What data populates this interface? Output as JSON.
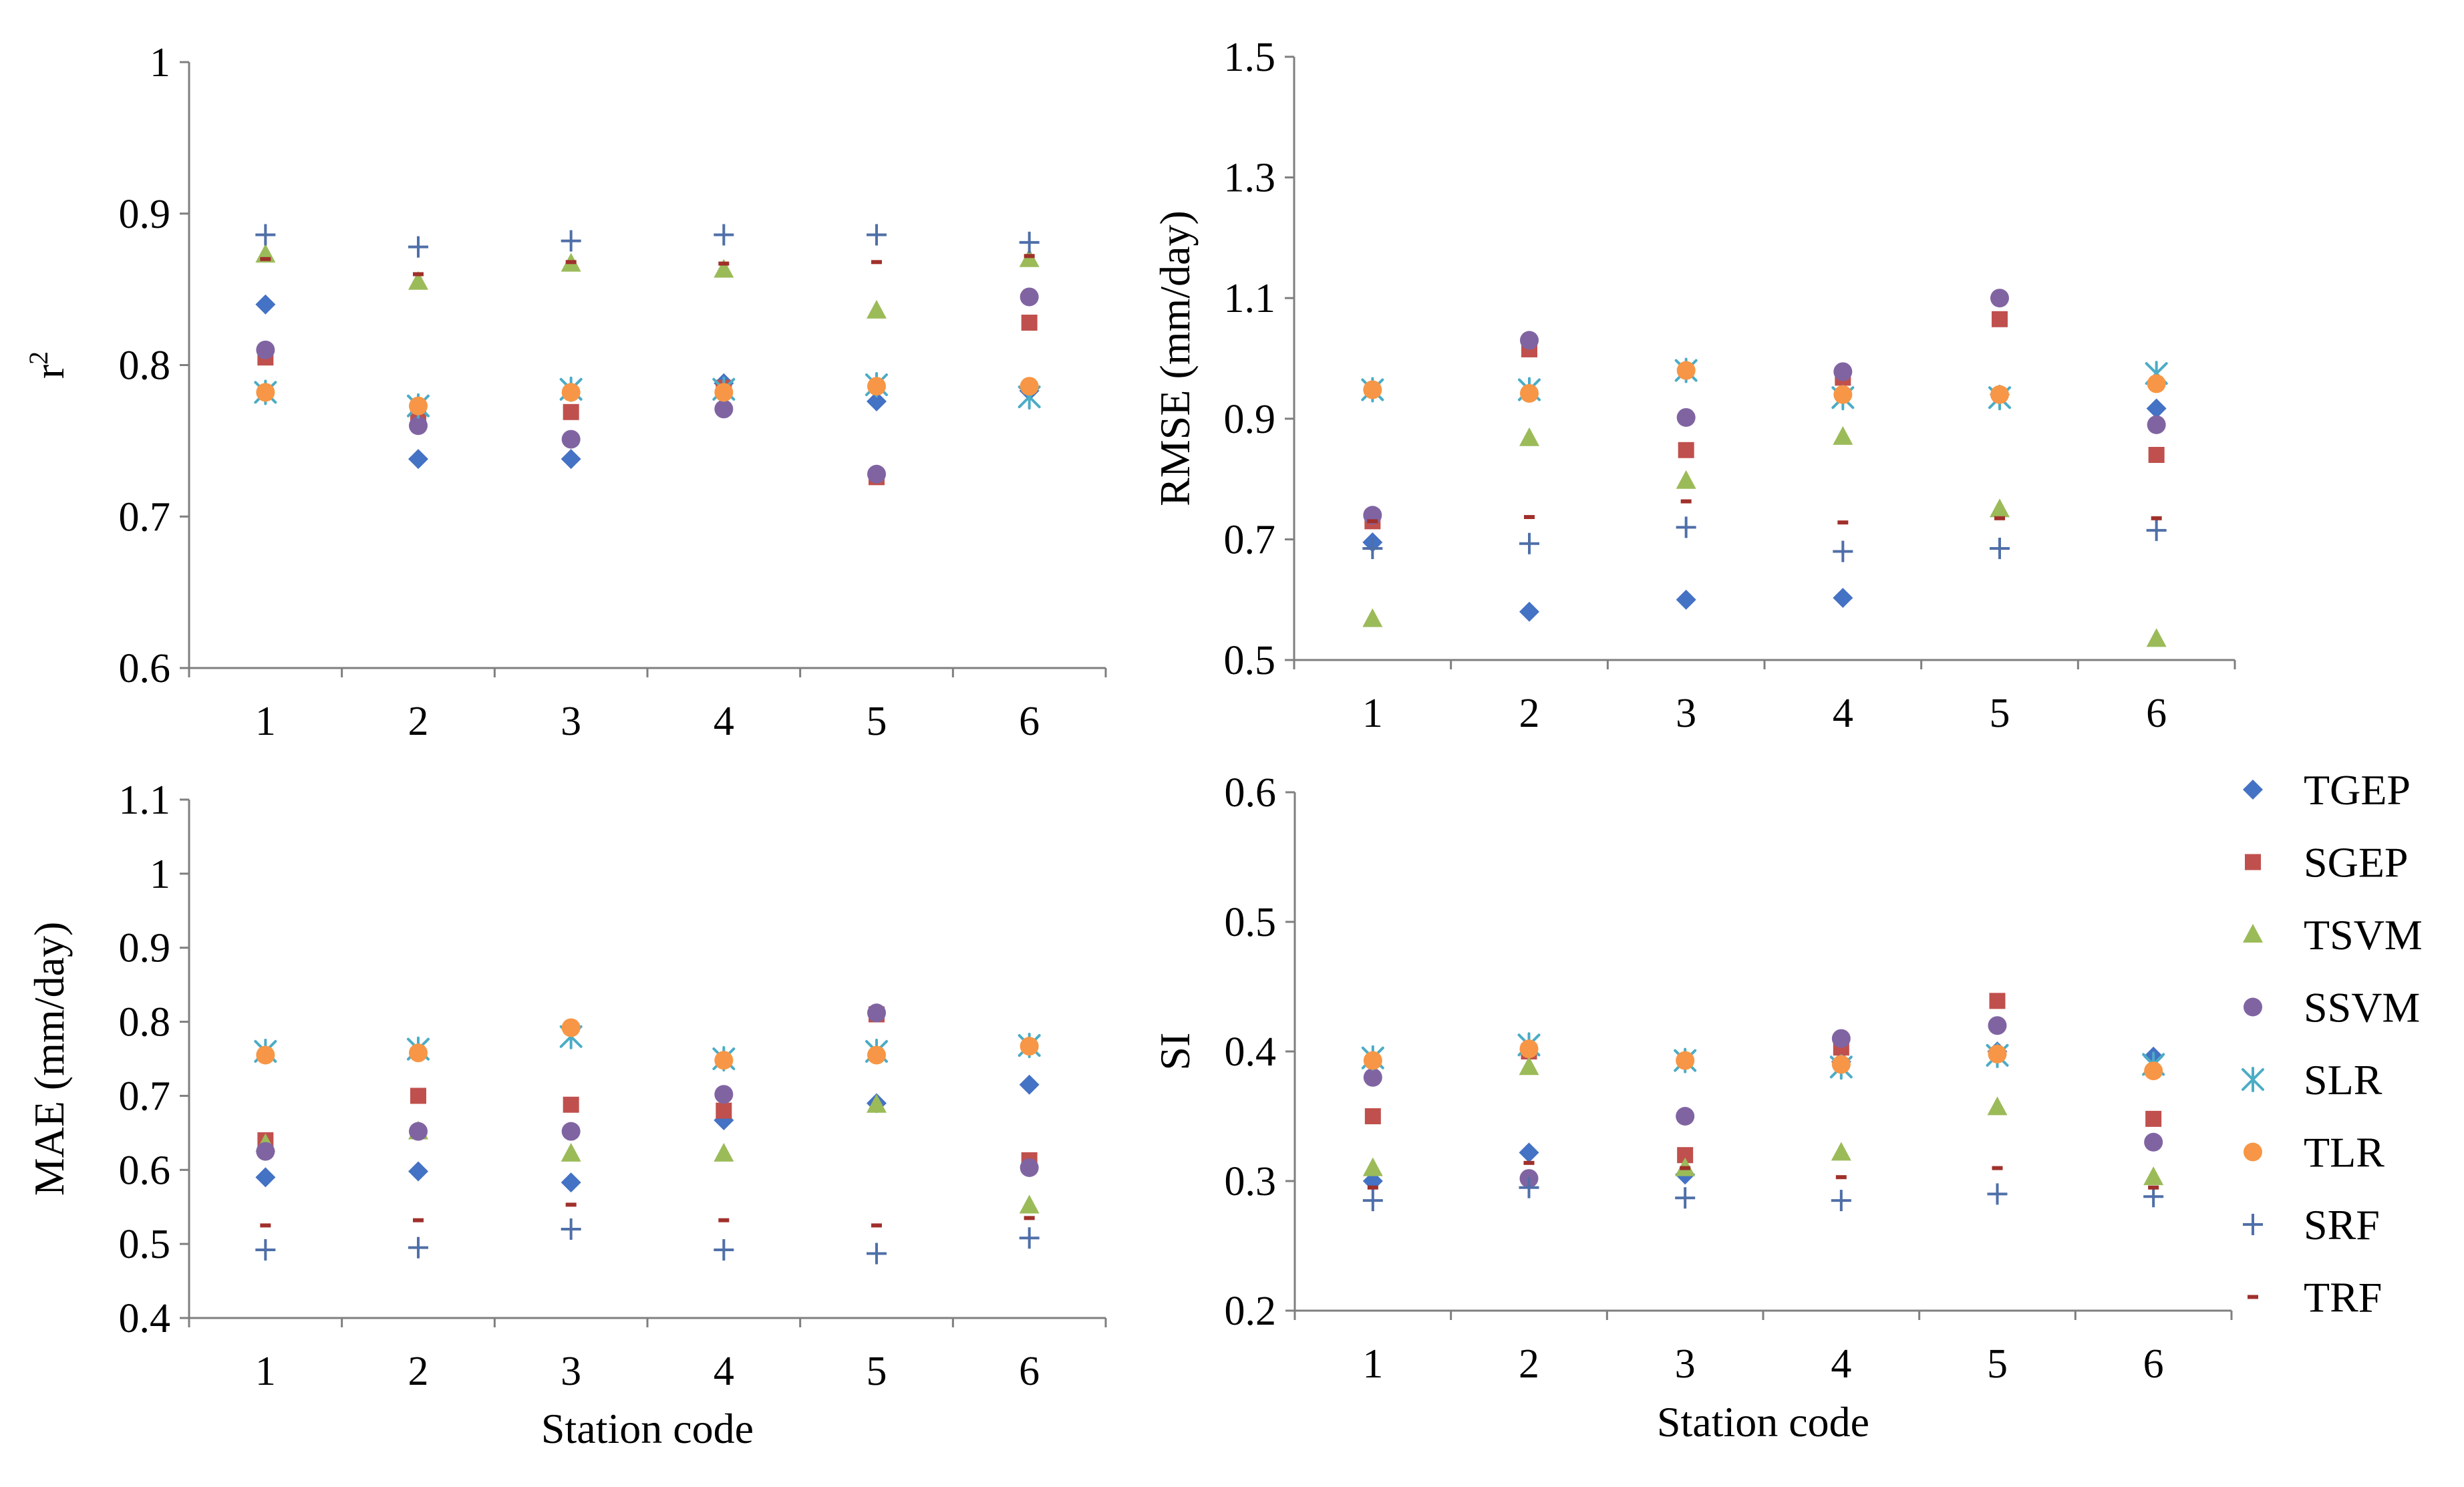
{
  "figure": {
    "legend": {
      "position": "right",
      "entries": [
        "TGEP",
        "SGEP",
        "TSVM",
        "SSVM",
        "SLR",
        "TLR",
        "SRF",
        "TRF"
      ]
    },
    "series_styles": [
      {
        "name": "TGEP",
        "marker": "diamond",
        "color": "#4472C4"
      },
      {
        "name": "SGEP",
        "marker": "square",
        "color": "#C0504D"
      },
      {
        "name": "TSVM",
        "marker": "triangle",
        "color": "#9BBB59"
      },
      {
        "name": "SSVM",
        "marker": "circle",
        "color": "#8064A2"
      },
      {
        "name": "SLR",
        "marker": "asterisk",
        "color": "#4BACC6"
      },
      {
        "name": "TLR",
        "marker": "circle",
        "color": "#F79646"
      },
      {
        "name": "SRF",
        "marker": "plus",
        "color": "#4F6FA8"
      },
      {
        "name": "TRF",
        "marker": "dash",
        "color": "#A0302B"
      }
    ]
  },
  "chart_data": [
    {
      "type": "scatter",
      "title": "",
      "xlabel": "",
      "ylabel": "r²",
      "ylim": [
        0.6,
        1.0
      ],
      "yticks": [
        "0.6",
        "0.7",
        "0.8",
        "0.9",
        "1"
      ],
      "categories": [
        "1",
        "2",
        "3",
        "4",
        "5",
        "6"
      ],
      "grid": false,
      "series": [
        {
          "name": "TGEP",
          "values": [
            0.84,
            0.738,
            0.738,
            0.788,
            0.776,
            0.783
          ]
        },
        {
          "name": "SGEP",
          "values": [
            0.805,
            0.768,
            0.769,
            0.785,
            0.726,
            0.828
          ]
        },
        {
          "name": "TSVM",
          "values": [
            0.873,
            0.855,
            0.867,
            0.863,
            0.836,
            0.87
          ]
        },
        {
          "name": "SSVM",
          "values": [
            0.81,
            0.76,
            0.751,
            0.771,
            0.728,
            0.845
          ]
        },
        {
          "name": "SLR",
          "values": [
            0.782,
            0.773,
            0.784,
            0.784,
            0.787,
            0.779
          ]
        },
        {
          "name": "TLR",
          "values": [
            0.782,
            0.773,
            0.782,
            0.782,
            0.786,
            0.786
          ]
        },
        {
          "name": "SRF",
          "values": [
            0.886,
            0.878,
            0.882,
            0.886,
            0.886,
            0.881
          ]
        },
        {
          "name": "TRF",
          "values": [
            0.87,
            0.86,
            0.868,
            0.867,
            0.868,
            0.872
          ]
        }
      ]
    },
    {
      "type": "scatter",
      "title": "",
      "xlabel": "",
      "ylabel": "RMSE  (mm/day)",
      "ylim": [
        0.5,
        1.5
      ],
      "yticks": [
        "0.5",
        "0.7",
        "0.9",
        "1.1",
        "1.3",
        "1.5"
      ],
      "categories": [
        "1",
        "2",
        "3",
        "4",
        "5",
        "6"
      ],
      "grid": false,
      "series": [
        {
          "name": "TGEP",
          "values": [
            0.695,
            0.58,
            0.6,
            0.603,
            0.94,
            0.917
          ]
        },
        {
          "name": "SGEP",
          "values": [
            0.73,
            1.015,
            0.848,
            0.968,
            1.065,
            0.84
          ]
        },
        {
          "name": "TSVM",
          "values": [
            0.568,
            0.868,
            0.797,
            0.87,
            0.75,
            0.535
          ]
        },
        {
          "name": "SSVM",
          "values": [
            0.74,
            1.03,
            0.902,
            0.978,
            1.1,
            0.89
          ]
        },
        {
          "name": "SLR",
          "values": [
            0.948,
            0.948,
            0.98,
            0.935,
            0.935,
            0.975
          ]
        },
        {
          "name": "TLR",
          "values": [
            0.948,
            0.942,
            0.98,
            0.94,
            0.94,
            0.958
          ]
        },
        {
          "name": "SRF",
          "values": [
            0.685,
            0.693,
            0.72,
            0.68,
            0.685,
            0.715
          ]
        },
        {
          "name": "TRF",
          "values": [
            0.73,
            0.737,
            0.763,
            0.728,
            0.735,
            0.735
          ]
        }
      ]
    },
    {
      "type": "scatter",
      "title": "",
      "xlabel": "Station code",
      "ylabel": "MAE  (mm/day)",
      "ylim": [
        0.4,
        1.1
      ],
      "yticks": [
        "0.4",
        "0.5",
        "0.6",
        "0.7",
        "0.8",
        "0.9",
        "1",
        "1.1"
      ],
      "categories": [
        "1",
        "2",
        "3",
        "4",
        "5",
        "6"
      ],
      "grid": false,
      "series": [
        {
          "name": "TGEP",
          "values": [
            0.59,
            0.598,
            0.583,
            0.667,
            0.69,
            0.715
          ]
        },
        {
          "name": "SGEP",
          "values": [
            0.64,
            0.7,
            0.688,
            0.68,
            0.81,
            0.613
          ]
        },
        {
          "name": "TSVM",
          "values": [
            0.635,
            0.652,
            0.622,
            0.622,
            0.688,
            0.552
          ]
        },
        {
          "name": "SSVM",
          "values": [
            0.625,
            0.652,
            0.652,
            0.702,
            0.812,
            0.603
          ]
        },
        {
          "name": "SLR",
          "values": [
            0.76,
            0.763,
            0.78,
            0.75,
            0.76,
            0.768
          ]
        },
        {
          "name": "TLR",
          "values": [
            0.755,
            0.758,
            0.792,
            0.748,
            0.755,
            0.767
          ]
        },
        {
          "name": "SRF",
          "values": [
            0.492,
            0.495,
            0.52,
            0.492,
            0.487,
            0.508
          ]
        },
        {
          "name": "TRF",
          "values": [
            0.525,
            0.532,
            0.553,
            0.532,
            0.525,
            0.535
          ]
        }
      ]
    },
    {
      "type": "scatter",
      "title": "",
      "xlabel": "Station code",
      "ylabel": "SI",
      "ylim": [
        0.2,
        0.6
      ],
      "yticks": [
        "0.2",
        "0.3",
        "0.4",
        "0.5",
        "0.6"
      ],
      "categories": [
        "1",
        "2",
        "3",
        "4",
        "5",
        "6"
      ],
      "grid": false,
      "series": [
        {
          "name": "TGEP",
          "values": [
            0.3,
            0.322,
            0.305,
            0.392,
            0.4,
            0.396
          ]
        },
        {
          "name": "SGEP",
          "values": [
            0.35,
            0.4,
            0.32,
            0.403,
            0.439,
            0.348
          ]
        },
        {
          "name": "TSVM",
          "values": [
            0.31,
            0.388,
            0.31,
            0.322,
            0.357,
            0.303
          ]
        },
        {
          "name": "SSVM",
          "values": [
            0.38,
            0.302,
            0.35,
            0.41,
            0.42,
            0.33
          ]
        },
        {
          "name": "SLR",
          "values": [
            0.395,
            0.405,
            0.393,
            0.388,
            0.397,
            0.39
          ]
        },
        {
          "name": "TLR",
          "values": [
            0.393,
            0.402,
            0.393,
            0.39,
            0.398,
            0.385
          ]
        },
        {
          "name": "SRF",
          "values": [
            0.285,
            0.295,
            0.287,
            0.285,
            0.29,
            0.288
          ]
        },
        {
          "name": "TRF",
          "values": [
            0.295,
            0.314,
            0.31,
            0.303,
            0.31,
            0.295
          ]
        }
      ]
    }
  ]
}
